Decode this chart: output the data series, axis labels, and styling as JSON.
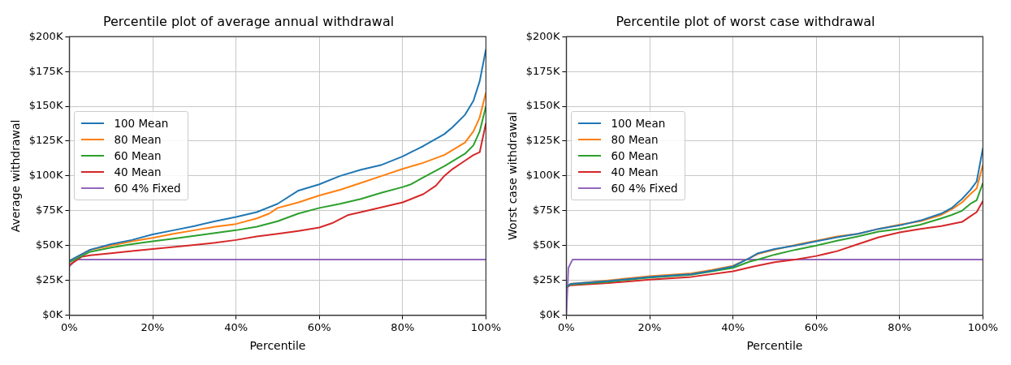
{
  "chart_data": [
    {
      "type": "line",
      "title": "Percentile plot of average annual withdrawal",
      "xlabel": "Percentile",
      "ylabel": "Average withdrawal",
      "xlim": [
        0,
        100
      ],
      "xticks": [
        {
          "value": 0,
          "label": "0%"
        },
        {
          "value": 20,
          "label": "20%"
        },
        {
          "value": 40,
          "label": "40%"
        },
        {
          "value": 60,
          "label": "60%"
        },
        {
          "value": 80,
          "label": "80%"
        },
        {
          "value": 100,
          "label": "100%"
        }
      ],
      "ylim": [
        0,
        200
      ],
      "yticks": [
        {
          "value": 0,
          "label": "$0K"
        },
        {
          "value": 25,
          "label": "$25K"
        },
        {
          "value": 50,
          "label": "$50K"
        },
        {
          "value": 75,
          "label": "$75K"
        },
        {
          "value": 100,
          "label": "$100K"
        },
        {
          "value": 125,
          "label": "$125K"
        },
        {
          "value": 150,
          "label": "$150K"
        },
        {
          "value": 175,
          "label": "$175K"
        },
        {
          "value": 200,
          "label": "$200K"
        }
      ],
      "grid": true,
      "legend": "center left",
      "marker": "none",
      "series": [
        {
          "name": "100 Mean",
          "color": "#1f77b4",
          "x": [
            0,
            5,
            10,
            15,
            20,
            25,
            30,
            35,
            40,
            45,
            50,
            55,
            60,
            65,
            70,
            75,
            80,
            85,
            90,
            92,
            95,
            97,
            98.5,
            100
          ],
          "values": [
            39,
            47,
            51,
            54,
            58,
            61,
            64,
            67.5,
            70.5,
            74,
            80,
            89.5,
            94,
            100,
            104.5,
            108,
            114,
            121.5,
            130,
            135,
            144,
            154,
            168,
            191
          ]
        },
        {
          "name": "80 Mean",
          "color": "#ff7f0e",
          "x": [
            0,
            5,
            10,
            15,
            20,
            25,
            30,
            35,
            40,
            45,
            48,
            50,
            55,
            60,
            65,
            70,
            75,
            80,
            85,
            90,
            95,
            97,
            98.5,
            100
          ],
          "values": [
            39,
            47,
            50,
            53,
            55.5,
            58.5,
            61,
            63.5,
            65.5,
            69.5,
            73,
            77,
            81,
            86,
            90,
            95,
            100,
            105,
            109.5,
            115,
            124,
            132,
            142,
            160
          ]
        },
        {
          "name": "60 Mean",
          "color": "#2ca02c",
          "x": [
            0,
            5,
            10,
            15,
            20,
            25,
            30,
            35,
            40,
            45,
            50,
            55,
            60,
            65,
            70,
            75,
            80,
            82,
            85,
            90,
            95,
            97,
            98.5,
            100
          ],
          "values": [
            38,
            45.5,
            48.5,
            51,
            53,
            55,
            57,
            59,
            61,
            63.5,
            67.5,
            73,
            77,
            80,
            83.5,
            88,
            92,
            94,
            99,
            107,
            116,
            122,
            132,
            150
          ]
        },
        {
          "name": "40 Mean",
          "color": "#d62728",
          "x": [
            0,
            3,
            5,
            10,
            15,
            20,
            25,
            30,
            35,
            40,
            45,
            50,
            55,
            60,
            63,
            65,
            67,
            70,
            75,
            80,
            85,
            88,
            90,
            92,
            95,
            97,
            98.5,
            100
          ],
          "values": [
            36,
            42,
            43,
            44.5,
            46,
            47.5,
            49,
            50.5,
            52,
            54,
            56.5,
            58.5,
            60.5,
            63,
            66,
            69,
            72,
            74,
            77.5,
            81,
            87,
            93,
            100,
            105,
            111,
            115,
            117,
            138
          ]
        },
        {
          "name": "60 4% Fixed",
          "color": "#9467bd",
          "x": [
            0,
            1,
            2,
            100
          ],
          "values": [
            35,
            38,
            40,
            40
          ]
        }
      ]
    },
    {
      "type": "line",
      "title": "Percentile plot of worst case withdrawal",
      "xlabel": "Percentile",
      "ylabel": "Worst case withdrawal",
      "xlim": [
        0,
        100
      ],
      "xticks": [
        {
          "value": 0,
          "label": "0%"
        },
        {
          "value": 20,
          "label": "20%"
        },
        {
          "value": 40,
          "label": "40%"
        },
        {
          "value": 60,
          "label": "60%"
        },
        {
          "value": 80,
          "label": "80%"
        },
        {
          "value": 100,
          "label": "100%"
        }
      ],
      "ylim": [
        0,
        200
      ],
      "yticks": [
        {
          "value": 0,
          "label": "$0K"
        },
        {
          "value": 25,
          "label": "$25K"
        },
        {
          "value": 50,
          "label": "$50K"
        },
        {
          "value": 75,
          "label": "$75K"
        },
        {
          "value": 100,
          "label": "$100K"
        },
        {
          "value": 125,
          "label": "$125K"
        },
        {
          "value": 150,
          "label": "$150K"
        },
        {
          "value": 175,
          "label": "$175K"
        },
        {
          "value": 200,
          "label": "$200K"
        }
      ],
      "grid": true,
      "legend": "center left",
      "marker": "none",
      "series": [
        {
          "name": "100 Mean",
          "color": "#1f77b4",
          "x": [
            0,
            1,
            10,
            20,
            30,
            35,
            40,
            44,
            46,
            50,
            55,
            60,
            65,
            70,
            75,
            80,
            85,
            90,
            92.5,
            95,
            97,
            98.5,
            100
          ],
          "values": [
            20,
            22.5,
            24.5,
            27.5,
            29.5,
            32,
            35,
            41,
            44.5,
            47.5,
            50,
            53,
            56,
            58.5,
            62,
            64.5,
            68,
            73,
            77,
            83.5,
            90,
            96,
            120
          ]
        },
        {
          "name": "80 Mean",
          "color": "#ff7f0e",
          "x": [
            0,
            1,
            10,
            20,
            30,
            35,
            40,
            44,
            46,
            50,
            55,
            60,
            65,
            70,
            75,
            80,
            85,
            90,
            92.5,
            95,
            97,
            98.5,
            100
          ],
          "values": [
            20,
            22.5,
            25,
            28,
            30,
            32.5,
            35.5,
            41,
            44,
            47,
            50.5,
            53.5,
            56.5,
            58.5,
            62,
            65,
            67.5,
            72,
            76,
            81,
            87,
            91,
            108
          ]
        },
        {
          "name": "60 Mean",
          "color": "#2ca02c",
          "x": [
            0,
            1,
            10,
            20,
            30,
            35,
            40,
            44,
            46,
            50,
            55,
            60,
            65,
            70,
            75,
            80,
            85,
            90,
            92.5,
            95,
            97,
            98.5,
            100
          ],
          "values": [
            21,
            22,
            24,
            27,
            29,
            31.5,
            34,
            38.5,
            40,
            43.5,
            47,
            50,
            53.5,
            56.5,
            60,
            62,
            65,
            69.5,
            72,
            75,
            80,
            82.5,
            95
          ]
        },
        {
          "name": "40 Mean",
          "color": "#d62728",
          "x": [
            0,
            1,
            10,
            20,
            30,
            40,
            45,
            50,
            55,
            60,
            65,
            70,
            75,
            80,
            85,
            90,
            95,
            97,
            98.5,
            100
          ],
          "values": [
            20,
            21.5,
            23,
            25.5,
            27.5,
            31.5,
            35,
            38,
            40,
            42.5,
            46,
            51,
            56,
            59.5,
            62,
            64,
            67,
            71,
            74,
            82
          ]
        },
        {
          "name": "60 4% Fixed",
          "color": "#9467bd",
          "x": [
            0,
            0.5,
            1.5,
            100
          ],
          "values": [
            0,
            34,
            40,
            40
          ]
        }
      ]
    }
  ]
}
